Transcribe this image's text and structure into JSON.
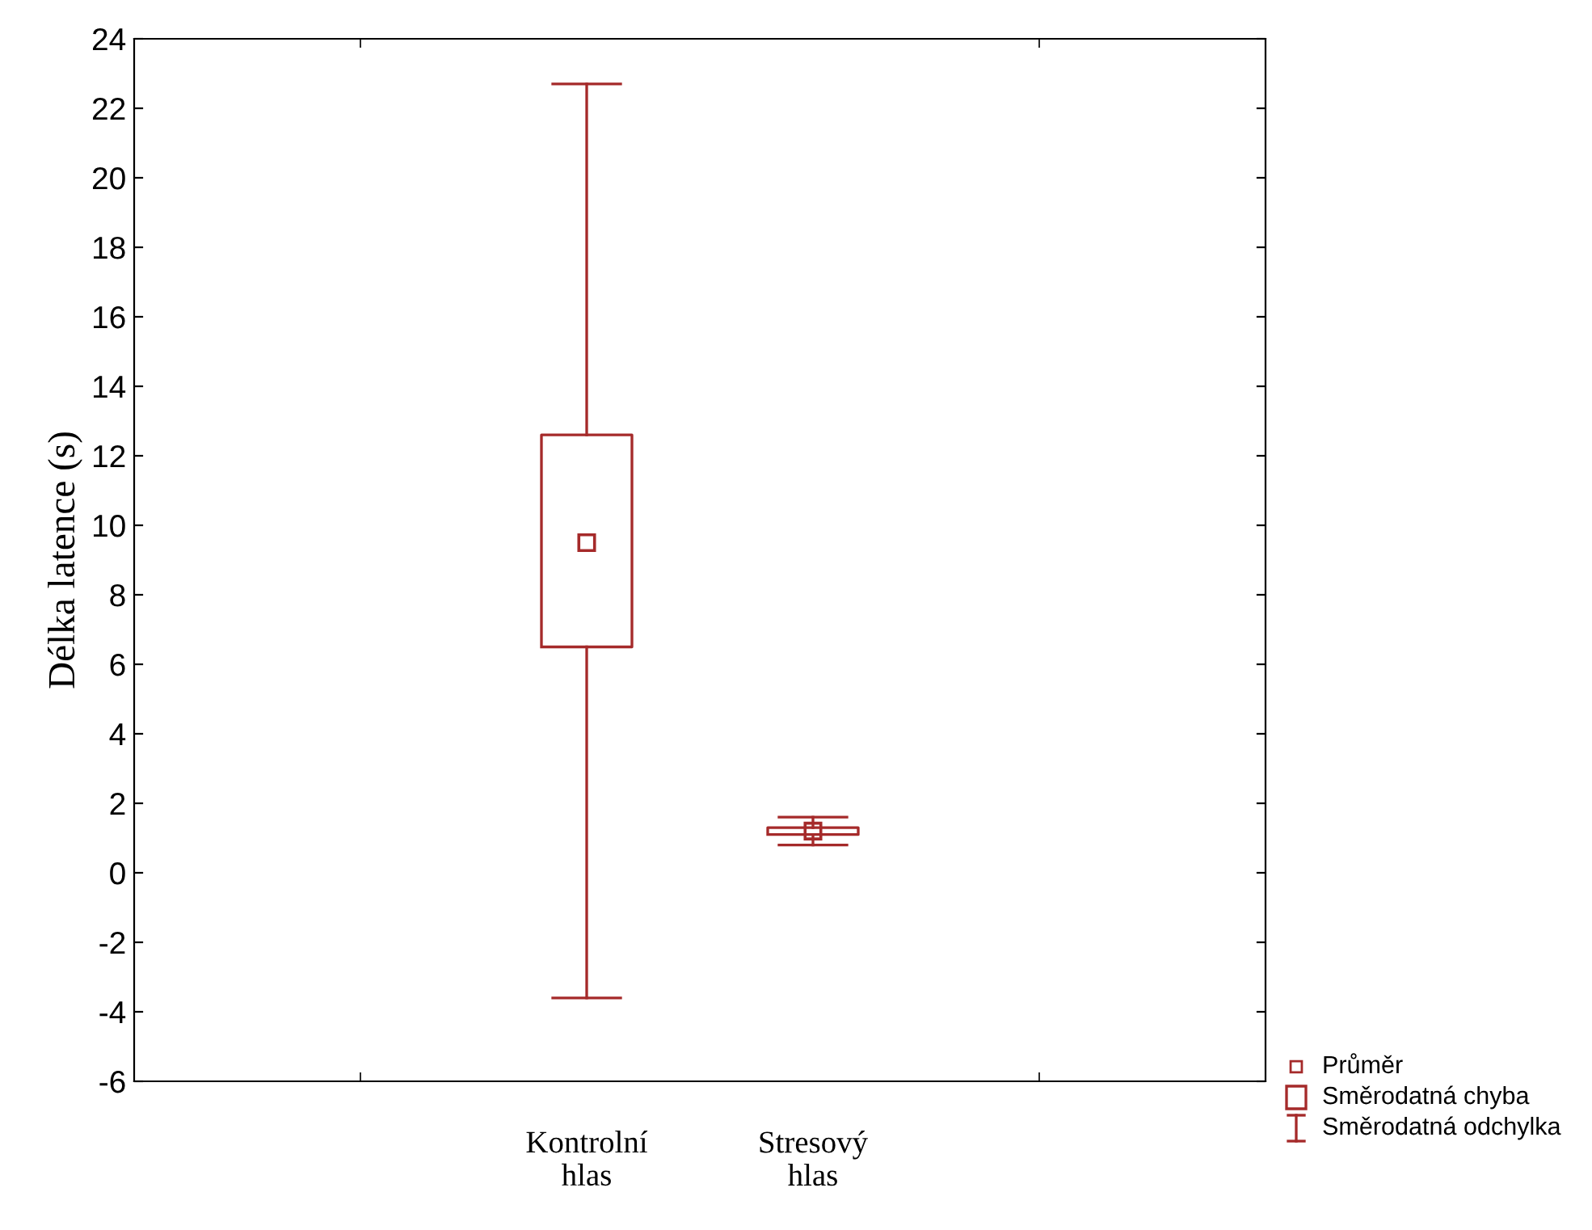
{
  "chart_data": {
    "type": "box",
    "ylabel": "Délka latence (s)",
    "categories": [
      "Kontrolní\nhlas",
      "Stresový\nhlas"
    ],
    "boxes": [
      {
        "low": -3.6,
        "q1": 6.5,
        "q3": 12.6,
        "high": 22.7,
        "mean": 9.5
      },
      {
        "low": 0.8,
        "q1": 1.1,
        "q3": 1.3,
        "high": 1.6,
        "mean": 1.2
      }
    ],
    "color": "#a52a2a",
    "ylim": [
      -6,
      24
    ],
    "yticks": [
      -6,
      -4,
      -2,
      0,
      2,
      4,
      6,
      8,
      10,
      12,
      14,
      16,
      18,
      20,
      22,
      24
    ],
    "grid": false,
    "annotations": [
      "Průměr",
      "Směrodatná chyba",
      "Směrodatná odchylka"
    ]
  }
}
